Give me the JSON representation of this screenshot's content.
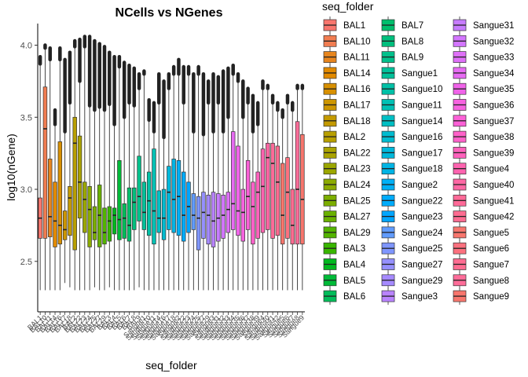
{
  "chart_data": {
    "type": "boxplot",
    "title": "NCells vs NGenes",
    "xlabel": "seq_folder",
    "ylabel": "log10(nGene)",
    "ylim": [
      2.15,
      4.15
    ],
    "yticks": [
      "2.5",
      "3.0",
      "3.5",
      "4.0"
    ],
    "ytick_values": [
      2.5,
      3.0,
      3.5,
      4.0
    ],
    "legend_title": "seq_folder",
    "legend_position": "right",
    "grid": false,
    "categories": [
      "BAL1",
      "BAL10",
      "BAL11",
      "BAL14",
      "BAL16",
      "BAL17",
      "BAL18",
      "BAL2",
      "BAL22",
      "BAL23",
      "BAL24",
      "BAL25",
      "BAL27",
      "BAL29",
      "BAL3",
      "BAL4",
      "BAL5",
      "BAL6",
      "BAL7",
      "BAL8",
      "BAL9",
      "Sangue1",
      "Sangue10",
      "Sangue11",
      "Sangue14",
      "Sangue16",
      "Sangue17",
      "Sangue18",
      "Sangue2",
      "Sangue22",
      "Sangue23",
      "Sangue24",
      "Sangue25",
      "Sangue27",
      "Sangue29",
      "Sangue3",
      "Sangue31",
      "Sangue32",
      "Sangue33",
      "Sangue34",
      "Sangue35",
      "Sangue36",
      "Sangue37",
      "Sangue38",
      "Sangue39",
      "Sangue4",
      "Sangue40",
      "Sangue41",
      "Sangue42",
      "Sangue5",
      "Sangue6",
      "Sangue7",
      "Sangue8",
      "Sangue9"
    ],
    "colors": [
      "#F8766D",
      "#F17D51",
      "#E7851E",
      "#E28A00",
      "#D89000",
      "#CD9600",
      "#C49A00",
      "#B89F00",
      "#AAA300",
      "#9CA700",
      "#8CAB00",
      "#7CAE00",
      "#6AB100",
      "#53B400",
      "#39B600",
      "#00B81F",
      "#00BA38",
      "#00BC59",
      "#00BE6C",
      "#00BF7D",
      "#00C08B",
      "#00C19A",
      "#00C1A7",
      "#00C0B4",
      "#00BFC4",
      "#00BCD0",
      "#00B8DB",
      "#00B4E5",
      "#00B0F6",
      "#00ACFC",
      "#00A5FF",
      "#619CFF",
      "#7F96FF",
      "#9590FF",
      "#A58AFF",
      "#B983FF",
      "#C77CFF",
      "#D376FF",
      "#DF70F8",
      "#E76BF3",
      "#F063E9",
      "#F763E0",
      "#FB61D7",
      "#FF61C9",
      "#FF62BC",
      "#FF64B0",
      "#FF67A4",
      "#FF6A98",
      "#FF6C91",
      "#F8766D",
      "#FC717F",
      "#FF6C91",
      "#FD6D99",
      "#F8766D"
    ],
    "boxes": [
      {
        "q1": 2.66,
        "median": 2.8,
        "q3": 2.94,
        "wmin": 2.3,
        "wmax": 3.87,
        "omax": 3.92
      },
      {
        "q1": 2.66,
        "median": 3.42,
        "q3": 3.71,
        "wmin": 2.3,
        "wmax": 3.98,
        "omax": 4.0
      },
      {
        "q1": 2.67,
        "median": 2.81,
        "q3": 3.21,
        "wmin": 2.3,
        "wmax": 3.9,
        "omax": 3.98
      },
      {
        "q1": 2.6,
        "median": 2.78,
        "q3": 3.05,
        "wmin": 2.3,
        "wmax": 3.45,
        "omax": 3.55
      },
      {
        "q1": 2.62,
        "median": 2.75,
        "q3": 3.33,
        "wmin": 2.3,
        "wmax": 3.9,
        "omax": 3.98
      },
      {
        "q1": 2.65,
        "median": 2.72,
        "q3": 2.85,
        "wmin": 2.35,
        "wmax": 3.4,
        "omax": 3.9
      },
      {
        "q1": 2.68,
        "median": 2.94,
        "q3": 3.02,
        "wmin": 2.32,
        "wmax": 3.6,
        "omax": 3.95
      },
      {
        "q1": 2.58,
        "median": 3.32,
        "q3": 3.5,
        "wmin": 2.3,
        "wmax": 3.99,
        "omax": 4.03
      },
      {
        "q1": 2.8,
        "median": 3.05,
        "q3": 3.37,
        "wmin": 2.3,
        "wmax": 3.75,
        "omax": 4.04
      },
      {
        "q1": 2.7,
        "median": 2.93,
        "q3": 3.05,
        "wmin": 2.3,
        "wmax": 3.99,
        "omax": 4.06
      },
      {
        "q1": 2.6,
        "median": 2.86,
        "q3": 3.02,
        "wmin": 2.3,
        "wmax": 3.58,
        "omax": 4.06
      },
      {
        "q1": 2.65,
        "median": 2.7,
        "q3": 2.88,
        "wmin": 2.32,
        "wmax": 3.55,
        "omax": 4.03
      },
      {
        "q1": 2.6,
        "median": 2.82,
        "q3": 3.03,
        "wmin": 2.3,
        "wmax": 3.57,
        "omax": 4.01
      },
      {
        "q1": 2.62,
        "median": 2.7,
        "q3": 2.87,
        "wmin": 2.3,
        "wmax": 3.55,
        "omax": 3.99
      },
      {
        "q1": 2.64,
        "median": 2.78,
        "q3": 2.88,
        "wmin": 2.32,
        "wmax": 3.59,
        "omax": 3.95
      },
      {
        "q1": 2.69,
        "median": 2.82,
        "q3": 2.87,
        "wmin": 2.3,
        "wmax": 3.45,
        "omax": 3.92
      },
      {
        "q1": 2.65,
        "median": 2.79,
        "q3": 3.2,
        "wmin": 2.3,
        "wmax": 3.85,
        "omax": 3.92
      },
      {
        "q1": 2.66,
        "median": 2.8,
        "q3": 2.9,
        "wmin": 2.3,
        "wmax": 3.5,
        "omax": 3.88
      },
      {
        "q1": 2.64,
        "median": 2.75,
        "q3": 3.01,
        "wmin": 2.3,
        "wmax": 3.6,
        "omax": 3.86
      },
      {
        "q1": 2.72,
        "median": 2.91,
        "q3": 3.01,
        "wmin": 2.3,
        "wmax": 3.58,
        "omax": 3.84
      },
      {
        "q1": 2.78,
        "median": 2.95,
        "q3": 3.23,
        "wmin": 2.32,
        "wmax": 3.7,
        "omax": 3.8
      },
      {
        "q1": 2.72,
        "median": 2.84,
        "q3": 3.05,
        "wmin": 2.3,
        "wmax": 3.8,
        "omax": 3.82
      },
      {
        "q1": 2.68,
        "median": 2.92,
        "q3": 3.12,
        "wmin": 2.3,
        "wmax": 3.48,
        "omax": 3.62
      },
      {
        "q1": 2.62,
        "median": 2.85,
        "q3": 3.28,
        "wmin": 2.3,
        "wmax": 3.4,
        "omax": 3.6
      },
      {
        "q1": 2.7,
        "median": 2.8,
        "q3": 2.99,
        "wmin": 2.3,
        "wmax": 3.6,
        "omax": 3.8
      },
      {
        "q1": 2.65,
        "median": 2.8,
        "q3": 3.0,
        "wmin": 2.3,
        "wmax": 3.36,
        "omax": 3.75
      },
      {
        "q1": 2.72,
        "median": 2.98,
        "q3": 3.16,
        "wmin": 2.3,
        "wmax": 3.7,
        "omax": 3.8
      },
      {
        "q1": 2.7,
        "median": 2.93,
        "q3": 3.21,
        "wmin": 2.3,
        "wmax": 3.8,
        "omax": 3.85
      },
      {
        "q1": 2.68,
        "median": 2.95,
        "q3": 3.2,
        "wmin": 2.3,
        "wmax": 3.8,
        "omax": 3.9
      },
      {
        "q1": 2.64,
        "median": 2.82,
        "q3": 3.12,
        "wmin": 2.3,
        "wmax": 3.6,
        "omax": 3.85
      },
      {
        "q1": 2.7,
        "median": 2.88,
        "q3": 3.05,
        "wmin": 2.3,
        "wmax": 3.8,
        "omax": 3.85
      },
      {
        "q1": 2.72,
        "median": 2.82,
        "q3": 2.97,
        "wmin": 2.3,
        "wmax": 3.4,
        "omax": 3.8
      },
      {
        "q1": 2.58,
        "median": 2.8,
        "q3": 2.95,
        "wmin": 2.3,
        "wmax": 3.8,
        "omax": 3.85
      },
      {
        "q1": 2.66,
        "median": 2.84,
        "q3": 2.98,
        "wmin": 2.3,
        "wmax": 3.38,
        "omax": 3.8
      },
      {
        "q1": 2.62,
        "median": 2.82,
        "q3": 2.96,
        "wmin": 2.3,
        "wmax": 3.6,
        "omax": 3.75
      },
      {
        "q1": 2.6,
        "median": 2.78,
        "q3": 2.98,
        "wmin": 2.3,
        "wmax": 3.4,
        "omax": 3.8
      },
      {
        "q1": 2.64,
        "median": 2.8,
        "q3": 2.97,
        "wmin": 2.3,
        "wmax": 3.6,
        "omax": 3.78
      },
      {
        "q1": 2.66,
        "median": 2.82,
        "q3": 2.96,
        "wmin": 2.3,
        "wmax": 3.4,
        "omax": 3.82
      },
      {
        "q1": 2.7,
        "median": 2.86,
        "q3": 2.98,
        "wmin": 2.3,
        "wmax": 3.5,
        "omax": 3.84
      },
      {
        "q1": 2.72,
        "median": 2.9,
        "q3": 3.4,
        "wmin": 2.3,
        "wmax": 3.8,
        "omax": 3.86
      },
      {
        "q1": 2.68,
        "median": 2.85,
        "q3": 3.3,
        "wmin": 2.3,
        "wmax": 3.75,
        "omax": 3.8
      },
      {
        "q1": 2.64,
        "median": 2.84,
        "q3": 3.0,
        "wmin": 2.3,
        "wmax": 3.5,
        "omax": 3.75
      },
      {
        "q1": 2.72,
        "median": 2.95,
        "q3": 3.2,
        "wmin": 2.3,
        "wmax": 3.6,
        "omax": 3.7
      },
      {
        "q1": 2.62,
        "median": 2.88,
        "q3": 3.05,
        "wmin": 2.3,
        "wmax": 3.4,
        "omax": 3.65
      },
      {
        "q1": 2.66,
        "median": 2.98,
        "q3": 3.12,
        "wmin": 2.3,
        "wmax": 3.45,
        "omax": 3.6
      },
      {
        "q1": 2.7,
        "median": 3.02,
        "q3": 3.28,
        "wmin": 2.3,
        "wmax": 3.7,
        "omax": 3.75
      },
      {
        "q1": 2.72,
        "median": 3.22,
        "q3": 3.32,
        "wmin": 2.3,
        "wmax": 3.7,
        "omax": 3.72
      },
      {
        "q1": 2.66,
        "median": 3.18,
        "q3": 3.32,
        "wmin": 2.3,
        "wmax": 3.6,
        "omax": 3.65
      },
      {
        "q1": 2.68,
        "median": 3.05,
        "q3": 3.3,
        "wmin": 2.3,
        "wmax": 3.55,
        "omax": 3.6
      },
      {
        "q1": 2.62,
        "median": 2.82,
        "q3": 3.18,
        "wmin": 2.3,
        "wmax": 3.5,
        "omax": 3.55
      },
      {
        "q1": 2.66,
        "median": 2.98,
        "q3": 3.22,
        "wmin": 2.3,
        "wmax": 3.6,
        "omax": 3.65
      },
      {
        "q1": 2.62,
        "median": 2.75,
        "q3": 3.0,
        "wmin": 2.3,
        "wmax": 3.55,
        "omax": 3.6
      },
      {
        "q1": 2.62,
        "median": 3.0,
        "q3": 3.47,
        "wmin": 2.3,
        "wmax": 3.7,
        "omax": 3.72
      },
      {
        "q1": 2.62,
        "median": 2.93,
        "q3": 3.38,
        "wmin": 2.3,
        "wmax": 3.7,
        "omax": 3.72
      }
    ]
  }
}
